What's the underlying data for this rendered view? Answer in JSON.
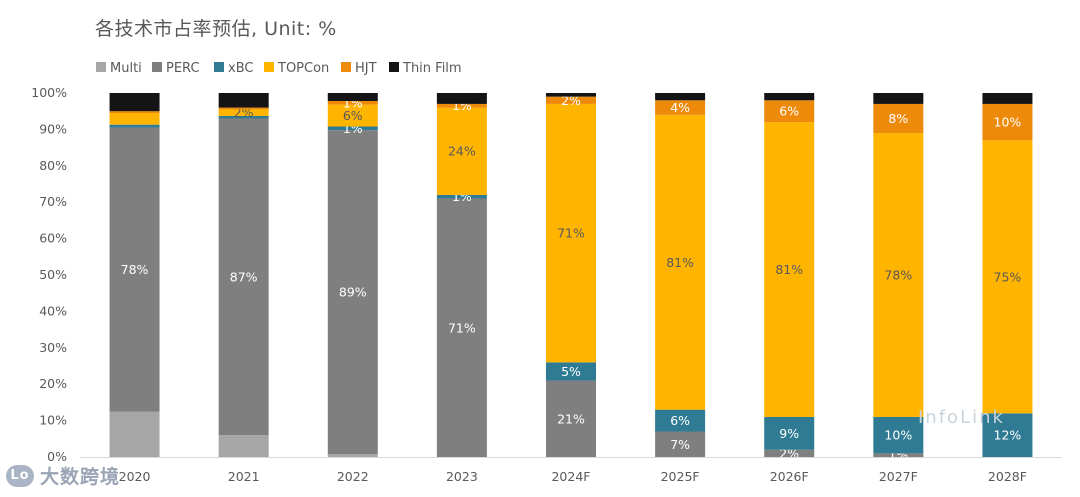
{
  "chart_data": {
    "type": "stacked-bar",
    "title": "各技术市占率预估, Unit: %",
    "categories": [
      "2020",
      "2021",
      "2022",
      "2023",
      "2024F",
      "2025F",
      "2026F",
      "2027F",
      "2028F"
    ],
    "ylim": [
      0,
      100
    ],
    "yticks": [
      "0%",
      "10%",
      "20%",
      "30%",
      "40%",
      "50%",
      "60%",
      "70%",
      "80%",
      "90%",
      "100%"
    ],
    "series": [
      {
        "name": "Multi",
        "color": "#a6a6a6",
        "values": [
          12.5,
          6,
          0.8,
          0,
          0,
          0,
          0,
          0,
          0
        ],
        "labels": [
          "",
          "",
          "",
          "",
          "",
          "",
          "",
          "",
          ""
        ]
      },
      {
        "name": "PERC",
        "color": "#7f7f7f",
        "values": [
          78,
          87,
          89,
          71,
          21,
          7,
          2,
          1,
          0
        ],
        "labels": [
          "78%",
          "87%",
          "89%",
          "71%",
          "21%",
          "7%",
          "2%",
          "1%",
          ""
        ]
      },
      {
        "name": "xBC",
        "color": "#2e7b93",
        "values": [
          0.8,
          0.7,
          1,
          1,
          5,
          6,
          9,
          10,
          12
        ],
        "labels": [
          "",
          "",
          "1%",
          "1%",
          "5%",
          "6%",
          "9%",
          "10%",
          "12%"
        ]
      },
      {
        "name": "TOPCon",
        "color": "#ffb400",
        "values": [
          3.2,
          1.8,
          6,
          24,
          71,
          81,
          81,
          78,
          75
        ],
        "labels": [
          "",
          "2%",
          "6%",
          "24%",
          "71%",
          "81%",
          "81%",
          "78%",
          "75%"
        ]
      },
      {
        "name": "HJT",
        "color": "#ed8a0a",
        "values": [
          0.5,
          0.5,
          1,
          1,
          2,
          4,
          6,
          8,
          10
        ],
        "labels": [
          "",
          "",
          "1%",
          "1%",
          "2%",
          "4%",
          "6%",
          "8%",
          "10%"
        ]
      },
      {
        "name": "Thin Film",
        "color": "#141414",
        "values": [
          5,
          4,
          2.2,
          3,
          1,
          2,
          2,
          3,
          3
        ],
        "labels": [
          "",
          "",
          "",
          "",
          "",
          "",
          "",
          "",
          ""
        ]
      }
    ]
  },
  "watermarks": {
    "infolink": "InfoLink",
    "logo_badge": "Lo",
    "logo_text": "大数跨境"
  }
}
